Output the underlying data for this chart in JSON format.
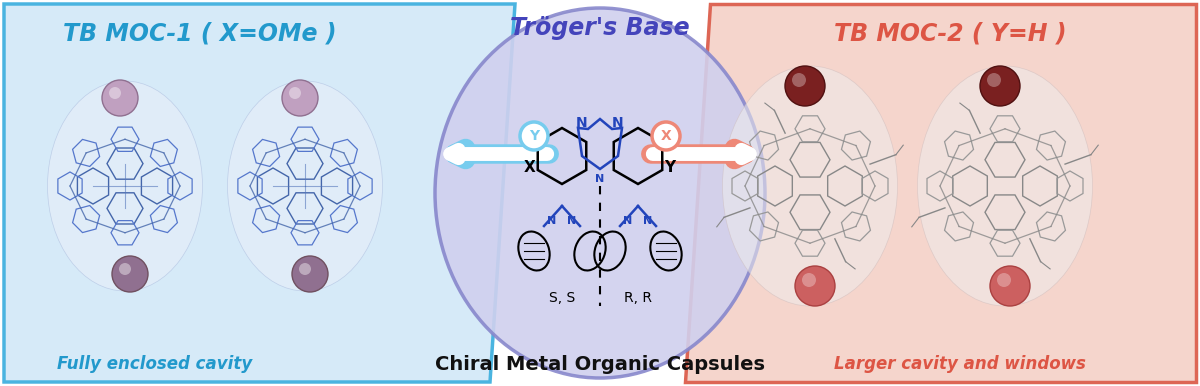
{
  "fig_width": 12.0,
  "fig_height": 3.86,
  "dpi": 100,
  "left_bg_color": "#d6eaf8",
  "right_bg_color": "#f5d5cc",
  "center_ellipse_color": "#d0d0ee",
  "center_ellipse_edge_color": "#8888cc",
  "left_border_color": "#4ab4e0",
  "right_border_color": "#dd6655",
  "title_left": "TB MOC-1 ( X=OMe )",
  "title_right": "TB MOC-2 ( Y=H )",
  "title_left_color": "#2299cc",
  "title_right_color": "#dd5544",
  "center_title": "Tröger's Base",
  "center_title_color": "#4444bb",
  "bottom_center_text": "Chiral Metal Organic Capsules",
  "bottom_center_color": "#111111",
  "bottom_left_text": "Fully enclosed cavity",
  "bottom_left_color": "#2299cc",
  "bottom_right_text": "Larger cavity and windows",
  "bottom_right_color": "#dd5544",
  "ss_label": "S, S",
  "rr_label": "R, R",
  "arrow_left_color": "#77ccee",
  "arrow_right_color": "#ee8877",
  "y_label": "Y",
  "x_label": "X"
}
